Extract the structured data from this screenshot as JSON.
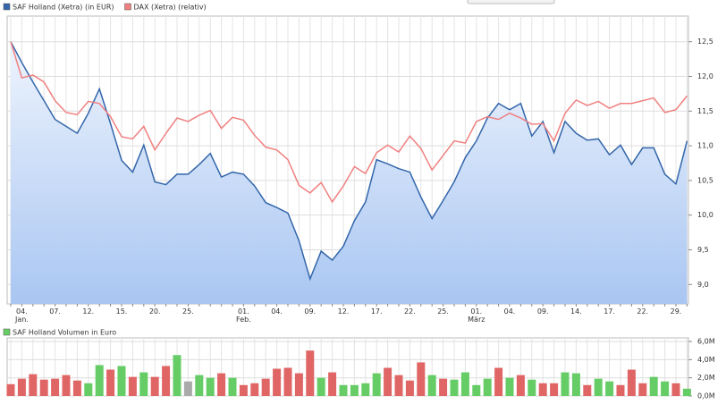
{
  "chart_data": [
    {
      "type": "line",
      "categories": [
        null,
        "04.\nJan.",
        null,
        null,
        "07.",
        null,
        null,
        "12.",
        null,
        null,
        "15.",
        null,
        null,
        "20.",
        null,
        null,
        "25.",
        null,
        null,
        null,
        null,
        "01.\nFeb.",
        null,
        null,
        "04.",
        null,
        null,
        "09.",
        null,
        null,
        "12.",
        null,
        null,
        "17.",
        null,
        null,
        "22.",
        null,
        null,
        "25.",
        null,
        null,
        "01.\nMärz",
        null,
        null,
        "04.",
        null,
        null,
        "09.",
        null,
        null,
        "14.",
        null,
        null,
        "17.",
        null,
        null,
        "22.",
        null,
        null,
        "29.",
        null
      ],
      "series": [
        {
          "name": "SAF Holland (Xetra) (in EUR)",
          "color": "#3366aa",
          "area": true,
          "values": [
            12.5,
            12.2,
            11.92,
            11.65,
            11.38,
            11.28,
            11.18,
            11.47,
            11.82,
            11.32,
            10.79,
            10.62,
            11.01,
            10.48,
            10.44,
            10.59,
            10.59,
            10.73,
            10.89,
            10.55,
            10.62,
            10.59,
            10.42,
            10.18,
            10.11,
            10.03,
            9.63,
            9.08,
            9.48,
            9.35,
            9.55,
            9.92,
            10.19,
            10.8,
            10.74,
            10.67,
            10.62,
            10.26,
            9.95,
            10.21,
            10.48,
            10.83,
            11.07,
            11.4,
            11.61,
            11.52,
            11.61,
            11.14,
            11.35,
            10.9,
            11.35,
            11.18,
            11.08,
            11.1,
            10.87,
            11.01,
            10.73,
            10.97,
            10.97,
            10.59,
            10.45,
            11.07
          ]
        },
        {
          "name": "DAX (Xetra) (relativ)",
          "color": "#f08080",
          "area": false,
          "values": [
            12.5,
            11.98,
            12.02,
            11.92,
            11.65,
            11.48,
            11.45,
            11.64,
            11.61,
            11.42,
            11.13,
            11.1,
            11.28,
            10.94,
            11.18,
            11.4,
            11.35,
            11.44,
            11.51,
            11.25,
            11.41,
            11.37,
            11.15,
            10.98,
            10.94,
            10.8,
            10.43,
            10.32,
            10.47,
            10.19,
            10.42,
            10.7,
            10.6,
            10.9,
            11.01,
            10.91,
            11.14,
            10.96,
            10.65,
            10.86,
            11.07,
            11.04,
            11.35,
            11.42,
            11.38,
            11.47,
            11.4,
            11.31,
            11.32,
            11.07,
            11.47,
            11.66,
            11.58,
            11.64,
            11.54,
            11.61,
            11.61,
            11.65,
            11.69,
            11.48,
            11.52,
            11.72
          ]
        }
      ],
      "ylim": [
        8.72,
        12.87
      ],
      "yticks": [
        {
          "value": 9.0,
          "label": "9,0"
        },
        {
          "value": 9.5,
          "label": "9,5"
        },
        {
          "value": 10.0,
          "label": "10,0"
        },
        {
          "value": 10.5,
          "label": "10,5"
        },
        {
          "value": 11.0,
          "label": "11,0"
        },
        {
          "value": 11.5,
          "label": "11,5"
        },
        {
          "value": 12.0,
          "label": "12,0"
        },
        {
          "value": 12.5,
          "label": "12,5"
        }
      ],
      "grid": true
    },
    {
      "type": "bar",
      "series": [
        {
          "name": "SAF Holland Volumen in Euro",
          "color": "#66cc66",
          "values": [
            1.3,
            1.9,
            2.4,
            1.8,
            1.9,
            2.3,
            1.7,
            1.4,
            3.4,
            2.9,
            3.3,
            2.1,
            2.6,
            2.1,
            3.3,
            4.5,
            1.6,
            2.3,
            2.0,
            2.5,
            2.0,
            1.2,
            1.4,
            1.9,
            3.0,
            3.1,
            2.5,
            5.0,
            2.0,
            2.6,
            1.2,
            1.2,
            1.4,
            2.5,
            3.1,
            2.3,
            1.7,
            3.7,
            2.3,
            1.9,
            1.8,
            2.6,
            1.2,
            1.9,
            3.1,
            2.0,
            2.3,
            1.8,
            1.4,
            1.4,
            2.6,
            2.5,
            1.2,
            1.9,
            1.6,
            1.2,
            2.9,
            1.4,
            2.1,
            1.6,
            1.4,
            0.8
          ],
          "colors": [
            "#e06666",
            "#e06666",
            "#e06666",
            "#e06666",
            "#e06666",
            "#e06666",
            "#e06666",
            "#66cc66",
            "#66cc66",
            "#e06666",
            "#66cc66",
            "#e06666",
            "#66cc66",
            "#e06666",
            "#e06666",
            "#66cc66",
            "#aaaaaa",
            "#66cc66",
            "#66cc66",
            "#e06666",
            "#66cc66",
            "#e06666",
            "#e06666",
            "#e06666",
            "#e06666",
            "#e06666",
            "#e06666",
            "#e06666",
            "#66cc66",
            "#e06666",
            "#66cc66",
            "#66cc66",
            "#66cc66",
            "#66cc66",
            "#e06666",
            "#e06666",
            "#e06666",
            "#e06666",
            "#66cc66",
            "#e06666",
            "#66cc66",
            "#66cc66",
            "#66cc66",
            "#66cc66",
            "#e06666",
            "#66cc66",
            "#e06666",
            "#66cc66",
            "#e06666",
            "#e06666",
            "#66cc66",
            "#66cc66",
            "#e06666",
            "#66cc66",
            "#66cc66",
            "#e06666",
            "#e06666",
            "#e06666",
            "#66cc66",
            "#66cc66",
            "#e06666",
            "#66cc66"
          ]
        }
      ],
      "ylim": [
        0,
        6.4
      ],
      "yticks": [
        {
          "value": 0,
          "label": "0,0M"
        },
        {
          "value": 2,
          "label": "2,0M"
        },
        {
          "value": 4,
          "label": "4,0M"
        },
        {
          "value": 6,
          "label": "6,0M"
        }
      ],
      "grid": true
    }
  ]
}
